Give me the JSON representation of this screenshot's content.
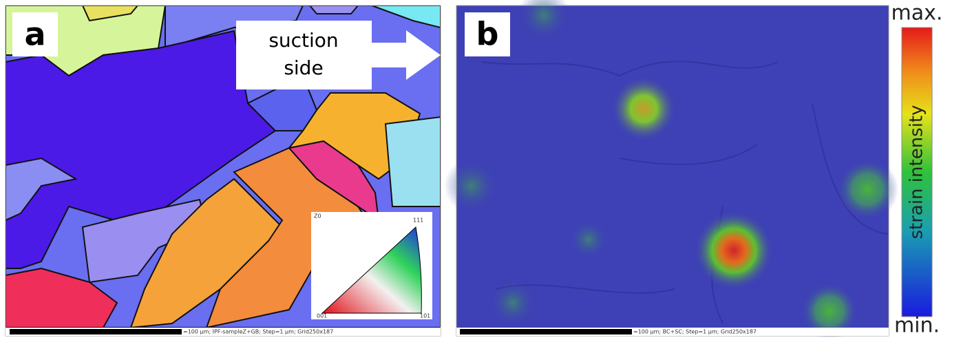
{
  "panel_a": {
    "label": "a",
    "arrow_text": [
      "suction",
      "side"
    ],
    "scale_text": "=100 µm; IPF-sampleZ+GB; Step=1 µm; Grid250x187",
    "legend": {
      "corner_top": "Z0",
      "apex": "111",
      "origin": "001",
      "right": "101"
    }
  },
  "panel_b": {
    "label": "b",
    "scale_text": "=100 µm; BC+SC; Step=1 µm; Grid250x187"
  },
  "colorbar": {
    "max_label": "max.",
    "min_label": "min.",
    "title": "strain intensity"
  }
}
